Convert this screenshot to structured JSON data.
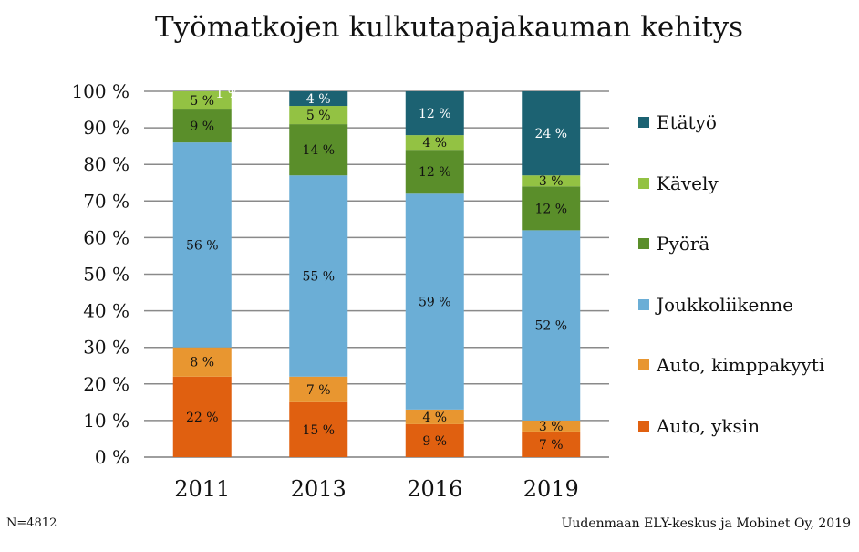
{
  "chart_data": {
    "type": "bar",
    "stacked": true,
    "title": "Työmatkojen kulkutapajakauman kehitys",
    "categories": [
      "2011",
      "2013",
      "2016",
      "2019"
    ],
    "y_ticks": [
      "0 %",
      "10 %",
      "20 %",
      "30 %",
      "40 %",
      "50 %",
      "60 %",
      "70 %",
      "80 %",
      "90 %",
      "100 %"
    ],
    "ylim": [
      0,
      100
    ],
    "grid": true,
    "legend_position": "right",
    "series": [
      {
        "name": "Auto, yksin",
        "color": "#E06010",
        "values": [
          22,
          15,
          9,
          7
        ],
        "labels": [
          "22 %",
          "15 %",
          "9 %",
          "7 %"
        ]
      },
      {
        "name": "Auto, kimppakyyti",
        "color": "#E89630",
        "values": [
          8,
          7,
          4,
          3
        ],
        "labels": [
          "8 %",
          "7 %",
          "4 %",
          "3 %"
        ]
      },
      {
        "name": "Joukkoliikenne",
        "color": "#6BAED6",
        "values": [
          56,
          55,
          59,
          52
        ],
        "labels": [
          "56 %",
          "55 %",
          "59 %",
          "52 %"
        ]
      },
      {
        "name": "Pyörä",
        "color": "#5A8E2A",
        "values": [
          9,
          14,
          12,
          12
        ],
        "labels": [
          "9 %",
          "14 %",
          "12 %",
          "12 %"
        ]
      },
      {
        "name": "Kävely",
        "color": "#93C243",
        "values": [
          5,
          5,
          4,
          3
        ],
        "labels": [
          "5 %",
          "5 %",
          "4 %",
          "3 %"
        ]
      },
      {
        "name": "Etätyö",
        "color": "#1C6272",
        "values": [
          1,
          4,
          12,
          24
        ],
        "labels": [
          "1 %",
          "4 %",
          "12 %",
          "24 %"
        ]
      }
    ]
  },
  "footer": {
    "sample_size": "N=4812",
    "source": "Uudenmaan ELY-keskus ja Mobinet Oy, 2019"
  }
}
